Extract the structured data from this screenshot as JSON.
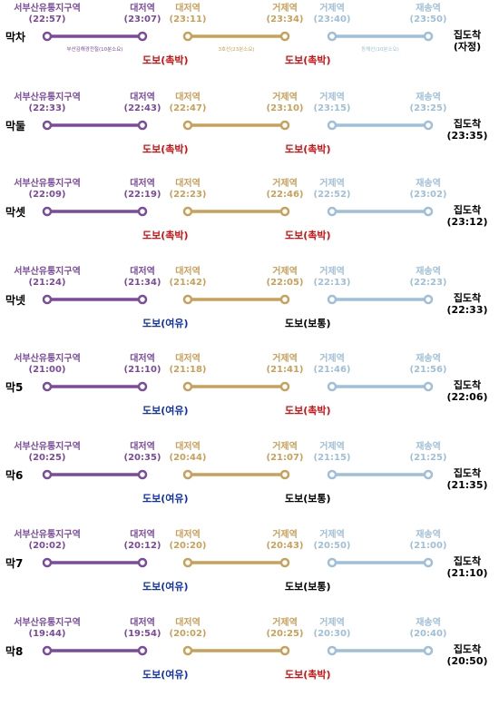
{
  "colors": {
    "line1": "#7b4a9c",
    "line3": "#c9a05a",
    "donghae": "#9fbfd8",
    "urgent": "#d01010",
    "relaxed": "#1030b0",
    "normal": "#000000"
  },
  "stations": {
    "s1": "서부산유통지구역",
    "s2": "대저역",
    "s3": "대저역",
    "s4": "거제역",
    "s5": "거제역",
    "s6": "재송역",
    "dest": "집도착"
  },
  "first_row_notes": {
    "seg1": "부산김해경전철(10분소요)",
    "seg2": "3호선(23분소요)",
    "seg3": "동해선(10분소요)"
  },
  "rows": [
    {
      "label": "막차",
      "t1": "(22:57)",
      "t2": "(23:07)",
      "t3": "(23:11)",
      "t4": "(23:34)",
      "t5": "(23:40)",
      "t6": "(23:50)",
      "dest_time": "(자정)",
      "walk1": "도보(촉박)",
      "walk1_type": "urgent",
      "walk2": "도보(촉박)",
      "walk2_type": "urgent"
    },
    {
      "label": "막둘",
      "t1": "(22:33)",
      "t2": "(22:43)",
      "t3": "(22:47)",
      "t4": "(23:10)",
      "t5": "(23:15)",
      "t6": "(23:25)",
      "dest_time": "(23:35)",
      "walk1": "도보(촉박)",
      "walk1_type": "urgent",
      "walk2": "도보(촉박)",
      "walk2_type": "urgent"
    },
    {
      "label": "막셋",
      "t1": "(22:09)",
      "t2": "(22:19)",
      "t3": "(22:23)",
      "t4": "(22:46)",
      "t5": "(22:52)",
      "t6": "(23:02)",
      "dest_time": "(23:12)",
      "walk1": "도보(촉박)",
      "walk1_type": "urgent",
      "walk2": "도보(촉박)",
      "walk2_type": "urgent"
    },
    {
      "label": "막넷",
      "t1": "(21:24)",
      "t2": "(21:34)",
      "t3": "(21:42)",
      "t4": "(22:05)",
      "t5": "(22:13)",
      "t6": "(22:23)",
      "dest_time": "(22:33)",
      "walk1": "도보(여유)",
      "walk1_type": "relaxed",
      "walk2": "도보(보통)",
      "walk2_type": "normal"
    },
    {
      "label": "막5",
      "t1": "(21:00)",
      "t2": "(21:10)",
      "t3": "(21:18)",
      "t4": "(21:41)",
      "t5": "(21:46)",
      "t6": "(21:56)",
      "dest_time": "(22:06)",
      "walk1": "도보(여유)",
      "walk1_type": "relaxed",
      "walk2": "도보(촉박)",
      "walk2_type": "urgent"
    },
    {
      "label": "막6",
      "t1": "(20:25)",
      "t2": "(20:35)",
      "t3": "(20:44)",
      "t4": "(21:07)",
      "t5": "(21:15)",
      "t6": "(21:25)",
      "dest_time": "(21:35)",
      "walk1": "도보(여유)",
      "walk1_type": "relaxed",
      "walk2": "도보(보통)",
      "walk2_type": "normal"
    },
    {
      "label": "막7",
      "t1": "(20:02)",
      "t2": "(20:12)",
      "t3": "(20:20)",
      "t4": "(20:43)",
      "t5": "(20:50)",
      "t6": "(21:00)",
      "dest_time": "(21:10)",
      "walk1": "도보(여유)",
      "walk1_type": "relaxed",
      "walk2": "도보(보통)",
      "walk2_type": "normal"
    },
    {
      "label": "막8",
      "t1": "(19:44)",
      "t2": "(19:54)",
      "t3": "(20:02)",
      "t4": "(20:25)",
      "t5": "(20:30)",
      "t6": "(20:40)",
      "dest_time": "(20:50)",
      "walk1": "도보(여유)",
      "walk1_type": "relaxed",
      "walk2": "도보(촉박)",
      "walk2_type": "urgent"
    }
  ]
}
